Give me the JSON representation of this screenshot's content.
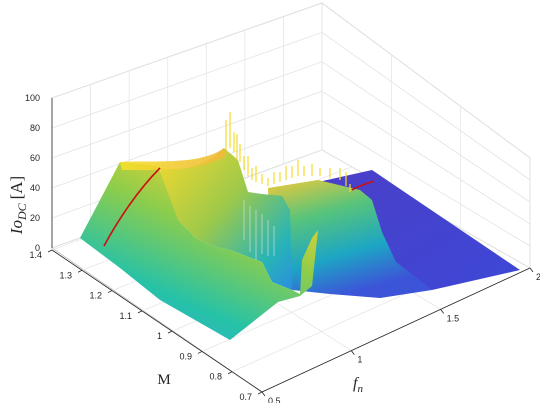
{
  "chart_data": {
    "type": "surface3d",
    "title": "",
    "zlabel": {
      "main": "Io",
      "sub": "DC",
      "unit": "[A]"
    },
    "xlabel": {
      "main": "f",
      "sub": "n"
    },
    "ylabel": "M",
    "xlim": [
      0.5,
      2
    ],
    "ylim": [
      0.7,
      1.4
    ],
    "zlim": [
      0,
      100
    ],
    "x_ticks": [
      "0.5",
      "1",
      "1.5",
      "2"
    ],
    "y_ticks": [
      "0.7",
      "0.8",
      "0.9",
      "1",
      "1.1",
      "1.2",
      "1.3",
      "1.4"
    ],
    "z_ticks": [
      "0",
      "20",
      "40",
      "60",
      "80",
      "100"
    ],
    "grid": true,
    "colormap": "parula",
    "resonance_fn": 1.0,
    "surface_samples": {
      "fn": [
        0.5,
        0.75,
        1.0,
        1.25,
        1.5,
        1.75,
        2.0
      ],
      "M_0.7": [
        45,
        33,
        27,
        22,
        10,
        4,
        1
      ],
      "M_1.4": [
        56,
        48,
        40,
        38,
        30,
        20,
        12
      ]
    },
    "lines": [
      {
        "name": "",
        "color": "#cc1010",
        "description": "red curve along surface"
      }
    ]
  }
}
